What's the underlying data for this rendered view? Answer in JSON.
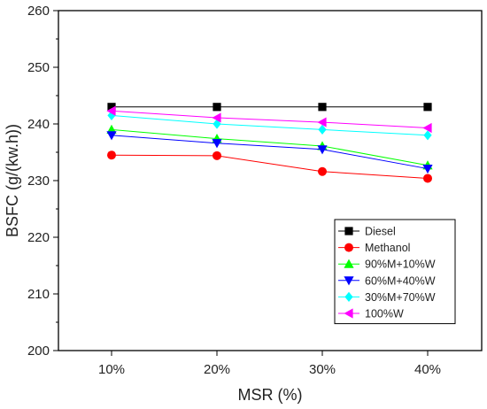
{
  "chart_data": {
    "type": "line",
    "categories": [
      "10%",
      "20%",
      "30%",
      "40%"
    ],
    "xlabel": "MSR (%)",
    "ylabel": "BSFC (g/(kw.h))",
    "ylim": [
      200,
      260
    ],
    "yticks": [
      200,
      210,
      220,
      230,
      240,
      250,
      260
    ],
    "grid": false,
    "legend_position": "bottom-right",
    "series": [
      {
        "name": "Diesel",
        "values": [
          243,
          243,
          243,
          243
        ],
        "color": "#000000",
        "marker": "square"
      },
      {
        "name": "Methanol",
        "values": [
          234.5,
          234.4,
          231.6,
          230.4
        ],
        "color": "#ff0000",
        "marker": "circle"
      },
      {
        "name": "90%M+10%W",
        "values": [
          239,
          237.4,
          236.1,
          232.7
        ],
        "color": "#00ff00",
        "marker": "triangle-up"
      },
      {
        "name": "60%M+40%W",
        "values": [
          238,
          236.6,
          235.5,
          232.1
        ],
        "color": "#0000ff",
        "marker": "triangle-down"
      },
      {
        "name": "30%M+70%W",
        "values": [
          241.5,
          240,
          239,
          238
        ],
        "color": "#00ffff",
        "marker": "diamond"
      },
      {
        "name": "100%W",
        "values": [
          242.3,
          241.1,
          240.3,
          239.3
        ],
        "color": "#ff00ff",
        "marker": "triangle-left"
      }
    ]
  }
}
